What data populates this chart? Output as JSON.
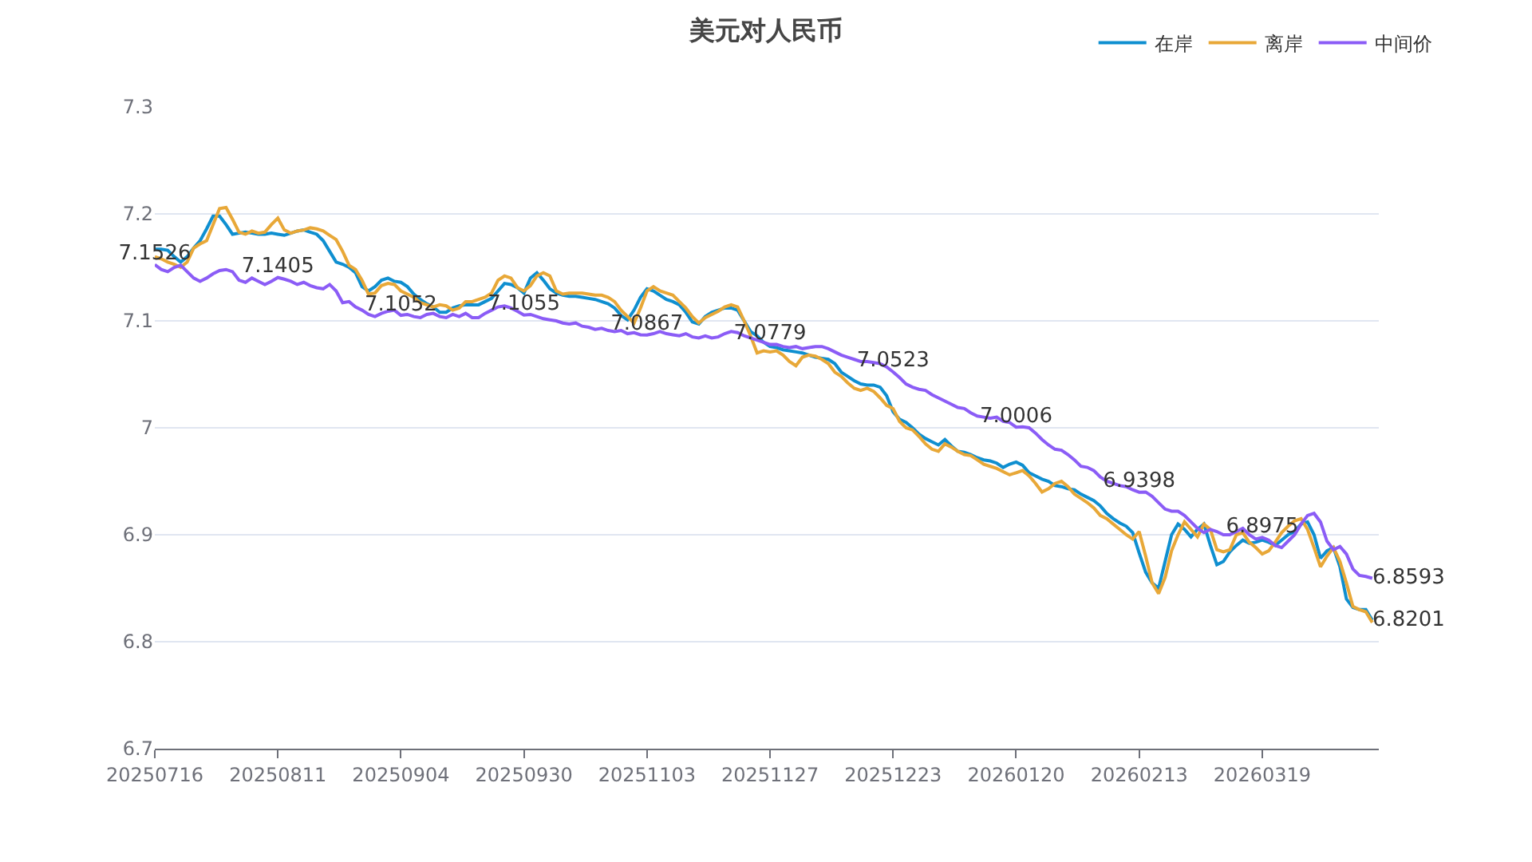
{
  "chart_data": {
    "type": "line",
    "title": "美元对人民币",
    "categories": [
      "20250716",
      null,
      null,
      null,
      null,
      null,
      null,
      null,
      null,
      null,
      null,
      null,
      null,
      null,
      null,
      null,
      null,
      null,
      null,
      "20250811",
      null,
      null,
      null,
      null,
      null,
      null,
      null,
      null,
      null,
      null,
      null,
      null,
      null,
      null,
      null,
      null,
      null,
      null,
      "20250904",
      null,
      null,
      null,
      null,
      null,
      null,
      null,
      null,
      null,
      null,
      null,
      null,
      null,
      null,
      null,
      null,
      null,
      null,
      "20250930",
      null,
      null,
      null,
      null,
      null,
      null,
      null,
      null,
      null,
      null,
      null,
      null,
      null,
      null,
      null,
      null,
      null,
      null,
      "20251103",
      null,
      null,
      null,
      null,
      null,
      null,
      null,
      null,
      null,
      null,
      null,
      null,
      null,
      null,
      null,
      null,
      null,
      null,
      "20251127",
      null,
      null,
      null,
      null,
      null,
      null,
      null,
      null,
      null,
      null,
      null,
      null,
      null,
      null,
      null,
      null,
      null,
      null,
      "20251223",
      null,
      null,
      null,
      null,
      null,
      null,
      null,
      null,
      null,
      null,
      null,
      null,
      null,
      null,
      null,
      null,
      null,
      null,
      "20260120",
      null,
      null,
      null,
      null,
      null,
      null,
      null,
      null,
      null,
      null,
      null,
      null,
      null,
      null,
      null,
      null,
      null,
      null,
      "20260213",
      null,
      null,
      null,
      null,
      null,
      null,
      null,
      null,
      null,
      null,
      null,
      null,
      null,
      null,
      null,
      null,
      null,
      null,
      "20260319",
      null,
      null,
      null,
      null,
      null,
      null,
      null,
      null,
      null,
      null,
      null,
      null,
      null,
      null,
      null,
      null,
      null
    ],
    "series": [
      {
        "name": "在岸",
        "color": "#0f8fd0",
        "values": [
          7.167,
          7.167,
          7.166,
          7.16,
          7.155,
          7.16,
          7.168,
          7.175,
          7.186,
          7.198,
          7.198,
          7.19,
          7.181,
          7.182,
          7.183,
          7.182,
          7.181,
          7.181,
          7.182,
          7.181,
          7.18,
          7.182,
          7.184,
          7.185,
          7.183,
          7.181,
          7.175,
          7.165,
          7.155,
          7.153,
          7.15,
          7.145,
          7.132,
          7.128,
          7.132,
          7.138,
          7.14,
          7.137,
          7.136,
          7.132,
          7.125,
          7.12,
          7.116,
          7.113,
          7.108,
          7.108,
          7.112,
          7.114,
          7.115,
          7.115,
          7.115,
          7.118,
          7.121,
          7.128,
          7.135,
          7.134,
          7.131,
          7.126,
          7.14,
          7.145,
          7.138,
          7.13,
          7.126,
          7.124,
          7.123,
          7.123,
          7.122,
          7.121,
          7.12,
          7.118,
          7.116,
          7.112,
          7.105,
          7.101,
          7.11,
          7.122,
          7.13,
          7.128,
          7.124,
          7.12,
          7.118,
          7.115,
          7.108,
          7.099,
          7.097,
          7.104,
          7.108,
          7.11,
          7.112,
          7.112,
          7.11,
          7.1,
          7.09,
          7.086,
          7.08,
          7.076,
          7.075,
          7.073,
          7.072,
          7.071,
          7.07,
          7.068,
          7.066,
          7.065,
          7.064,
          7.06,
          7.052,
          7.048,
          7.044,
          7.041,
          7.04,
          7.04,
          7.038,
          7.03,
          7.015,
          7.008,
          7.005,
          7.0,
          6.994,
          6.99,
          6.987,
          6.984,
          6.989,
          6.983,
          6.978,
          6.977,
          6.975,
          6.972,
          6.97,
          6.969,
          6.967,
          6.963,
          6.966,
          6.968,
          6.965,
          6.958,
          6.955,
          6.952,
          6.95,
          6.946,
          6.945,
          6.943,
          6.942,
          6.938,
          6.935,
          6.932,
          6.927,
          6.92,
          6.915,
          6.911,
          6.908,
          6.902,
          6.883,
          6.865,
          6.855,
          6.85,
          6.875,
          6.9,
          6.91,
          6.905,
          6.898,
          6.905,
          6.91,
          6.89,
          6.872,
          6.875,
          6.884,
          6.89,
          6.895,
          6.892,
          6.893,
          6.895,
          6.893,
          6.89,
          6.895,
          6.9,
          6.903,
          6.91,
          6.912,
          6.9,
          6.878,
          6.885,
          6.888,
          6.87,
          6.84,
          6.832,
          6.83,
          6.83,
          6.8201
        ],
        "value_labels": [
          null,
          null,
          null,
          null,
          null,
          null,
          null,
          null,
          null,
          null,
          null,
          null,
          null,
          null,
          null,
          null,
          null,
          null,
          null,
          null,
          null,
          null,
          null,
          null,
          null,
          null,
          null,
          null,
          null,
          null,
          null,
          null,
          null,
          null,
          null,
          null,
          null,
          null,
          null,
          null,
          null,
          null,
          null,
          null,
          null,
          null,
          null,
          null,
          null,
          null,
          null,
          null,
          null,
          null,
          null,
          null,
          null,
          null,
          null,
          null,
          null,
          null,
          null,
          null,
          null,
          null,
          null,
          null,
          null,
          null,
          null,
          null,
          null,
          null,
          null,
          null,
          null,
          null,
          null,
          null,
          null,
          null,
          null,
          null,
          null,
          null,
          null,
          null,
          null,
          null,
          null,
          null,
          null,
          null,
          null,
          null,
          null,
          null,
          null,
          null,
          null,
          null,
          null,
          null,
          null,
          null,
          null,
          null,
          null,
          null,
          null,
          null,
          null,
          null,
          null,
          null,
          null,
          null,
          null,
          null,
          null,
          null,
          null,
          null,
          null,
          null,
          null,
          null,
          null,
          null,
          null,
          null,
          null,
          null,
          null,
          null,
          null,
          null,
          null,
          null,
          null,
          null,
          null,
          null,
          null,
          null,
          null,
          null,
          null,
          null,
          null,
          null,
          null,
          null,
          null,
          null,
          null,
          null,
          null,
          null,
          null,
          null,
          null,
          null,
          null,
          null,
          null,
          null,
          null,
          null,
          null,
          null,
          null,
          null,
          null,
          null,
          null,
          null,
          null,
          null,
          null,
          null,
          null,
          null,
          null,
          null,
          null,
          null,
          "6.8201"
        ]
      },
      {
        "name": "离岸",
        "color": "#e8a838",
        "values": [
          7.16,
          7.158,
          7.155,
          7.153,
          7.15,
          7.155,
          7.168,
          7.172,
          7.175,
          7.19,
          7.205,
          7.206,
          7.195,
          7.183,
          7.181,
          7.184,
          7.182,
          7.183,
          7.19,
          7.196,
          7.185,
          7.182,
          7.184,
          7.185,
          7.187,
          7.186,
          7.184,
          7.18,
          7.176,
          7.165,
          7.152,
          7.148,
          7.138,
          7.125,
          7.126,
          7.133,
          7.135,
          7.134,
          7.128,
          7.125,
          7.122,
          7.117,
          7.115,
          7.113,
          7.115,
          7.114,
          7.11,
          7.112,
          7.118,
          7.118,
          7.12,
          7.122,
          7.126,
          7.138,
          7.142,
          7.14,
          7.131,
          7.128,
          7.133,
          7.142,
          7.145,
          7.142,
          7.128,
          7.125,
          7.126,
          7.126,
          7.126,
          7.125,
          7.124,
          7.124,
          7.122,
          7.118,
          7.11,
          7.104,
          7.098,
          7.112,
          7.128,
          7.132,
          7.128,
          7.126,
          7.124,
          7.118,
          7.112,
          7.104,
          7.098,
          7.103,
          7.106,
          7.109,
          7.113,
          7.115,
          7.113,
          7.1,
          7.086,
          7.07,
          7.072,
          7.071,
          7.072,
          7.068,
          7.062,
          7.058,
          7.066,
          7.068,
          7.067,
          7.064,
          7.06,
          7.052,
          7.048,
          7.042,
          7.037,
          7.035,
          7.037,
          7.034,
          7.028,
          7.021,
          7.018,
          7.006,
          7.0,
          6.998,
          6.992,
          6.985,
          6.98,
          6.978,
          6.985,
          6.982,
          6.978,
          6.975,
          6.974,
          6.97,
          6.966,
          6.964,
          6.962,
          6.959,
          6.956,
          6.958,
          6.96,
          6.955,
          6.948,
          6.94,
          6.943,
          6.948,
          6.95,
          6.945,
          6.938,
          6.934,
          6.93,
          6.925,
          6.918,
          6.915,
          6.91,
          6.905,
          6.9,
          6.896,
          6.903,
          6.88,
          6.855,
          6.845,
          6.86,
          6.885,
          6.9,
          6.912,
          6.905,
          6.898,
          6.91,
          6.905,
          6.886,
          6.884,
          6.886,
          6.9,
          6.902,
          6.893,
          6.888,
          6.882,
          6.885,
          6.893,
          6.902,
          6.908,
          6.913,
          6.915,
          6.905,
          6.888,
          6.87,
          6.88,
          6.888,
          6.875,
          6.855,
          6.833,
          6.83,
          6.828,
          6.818
        ]
      },
      {
        "name": "中间价",
        "color": "#8b5cf6",
        "values": [
          7.1526,
          7.148,
          7.146,
          7.15,
          7.152,
          7.146,
          7.14,
          7.137,
          7.14,
          7.144,
          7.147,
          7.148,
          7.146,
          7.138,
          7.136,
          7.14,
          7.137,
          7.134,
          7.137,
          7.1405,
          7.139,
          7.137,
          7.134,
          7.136,
          7.133,
          7.131,
          7.13,
          7.134,
          7.128,
          7.117,
          7.118,
          7.113,
          7.11,
          7.106,
          7.104,
          7.107,
          7.109,
          7.11,
          7.1052,
          7.106,
          7.104,
          7.103,
          7.106,
          7.107,
          7.104,
          7.103,
          7.106,
          7.104,
          7.107,
          7.103,
          7.103,
          7.107,
          7.11,
          7.113,
          7.114,
          7.112,
          7.109,
          7.1055,
          7.106,
          7.104,
          7.102,
          7.101,
          7.1,
          7.098,
          7.097,
          7.098,
          7.095,
          7.094,
          7.092,
          7.093,
          7.091,
          7.09,
          7.091,
          7.088,
          7.089,
          7.087,
          7.0867,
          7.088,
          7.09,
          7.088,
          7.087,
          7.086,
          7.088,
          7.085,
          7.084,
          7.086,
          7.084,
          7.085,
          7.088,
          7.09,
          7.089,
          7.086,
          7.084,
          7.082,
          7.08,
          7.0779,
          7.078,
          7.076,
          7.075,
          7.076,
          7.074,
          7.075,
          7.076,
          7.076,
          7.074,
          7.071,
          7.068,
          7.066,
          7.064,
          7.062,
          7.062,
          7.061,
          7.06,
          7.057,
          7.0523,
          7.047,
          7.041,
          7.038,
          7.036,
          7.035,
          7.031,
          7.028,
          7.025,
          7.022,
          7.019,
          7.018,
          7.014,
          7.011,
          7.01,
          7.009,
          7.01,
          7.006,
          7.005,
          7.0006,
          7.001,
          7.0,
          6.995,
          6.989,
          6.984,
          6.98,
          6.979,
          6.975,
          6.97,
          6.964,
          6.963,
          6.96,
          6.954,
          6.95,
          6.948,
          6.946,
          6.945,
          6.942,
          6.9398,
          6.94,
          6.936,
          6.93,
          6.924,
          6.922,
          6.922,
          6.918,
          6.912,
          6.906,
          6.902,
          6.905,
          6.903,
          6.9,
          6.9,
          6.903,
          6.906,
          6.9,
          6.896,
          6.8975,
          6.895,
          6.89,
          6.888,
          6.894,
          6.9,
          6.91,
          6.918,
          6.92,
          6.912,
          6.894,
          6.886,
          6.889,
          6.882,
          6.868,
          6.862,
          6.861,
          6.8593
        ],
        "value_labels": [
          "7.1526",
          null,
          null,
          null,
          null,
          null,
          null,
          null,
          null,
          null,
          null,
          null,
          null,
          null,
          null,
          null,
          null,
          null,
          null,
          "7.1405",
          null,
          null,
          null,
          null,
          null,
          null,
          null,
          null,
          null,
          null,
          null,
          null,
          null,
          null,
          null,
          null,
          null,
          null,
          "7.1052",
          null,
          null,
          null,
          null,
          null,
          null,
          null,
          null,
          null,
          null,
          null,
          null,
          null,
          null,
          null,
          null,
          null,
          null,
          "7.1055",
          null,
          null,
          null,
          null,
          null,
          null,
          null,
          null,
          null,
          null,
          null,
          null,
          null,
          null,
          null,
          null,
          null,
          null,
          "7.0867",
          null,
          null,
          null,
          null,
          null,
          null,
          null,
          null,
          null,
          null,
          null,
          null,
          null,
          null,
          null,
          null,
          null,
          null,
          "7.0779",
          null,
          null,
          null,
          null,
          null,
          null,
          null,
          null,
          null,
          null,
          null,
          null,
          null,
          null,
          null,
          null,
          null,
          null,
          "7.0523",
          null,
          null,
          null,
          null,
          null,
          null,
          null,
          null,
          null,
          null,
          null,
          null,
          null,
          null,
          null,
          null,
          null,
          null,
          "7.0006",
          null,
          null,
          null,
          null,
          null,
          null,
          null,
          null,
          null,
          null,
          null,
          null,
          null,
          null,
          null,
          null,
          null,
          null,
          "6.9398",
          null,
          null,
          null,
          null,
          null,
          null,
          null,
          null,
          null,
          null,
          null,
          null,
          null,
          null,
          null,
          null,
          null,
          null,
          "6.8975",
          null,
          null,
          null,
          null,
          null,
          null,
          null,
          null,
          null,
          null,
          null,
          null,
          null,
          null,
          null,
          null,
          "6.8593"
        ]
      }
    ],
    "ylim": [
      6.7,
      7.3
    ],
    "yticks": [
      6.7,
      6.8,
      6.9,
      7,
      7.1,
      7.2,
      7.3
    ],
    "grid": "y",
    "legend": "top right",
    "line_style": "solid"
  }
}
